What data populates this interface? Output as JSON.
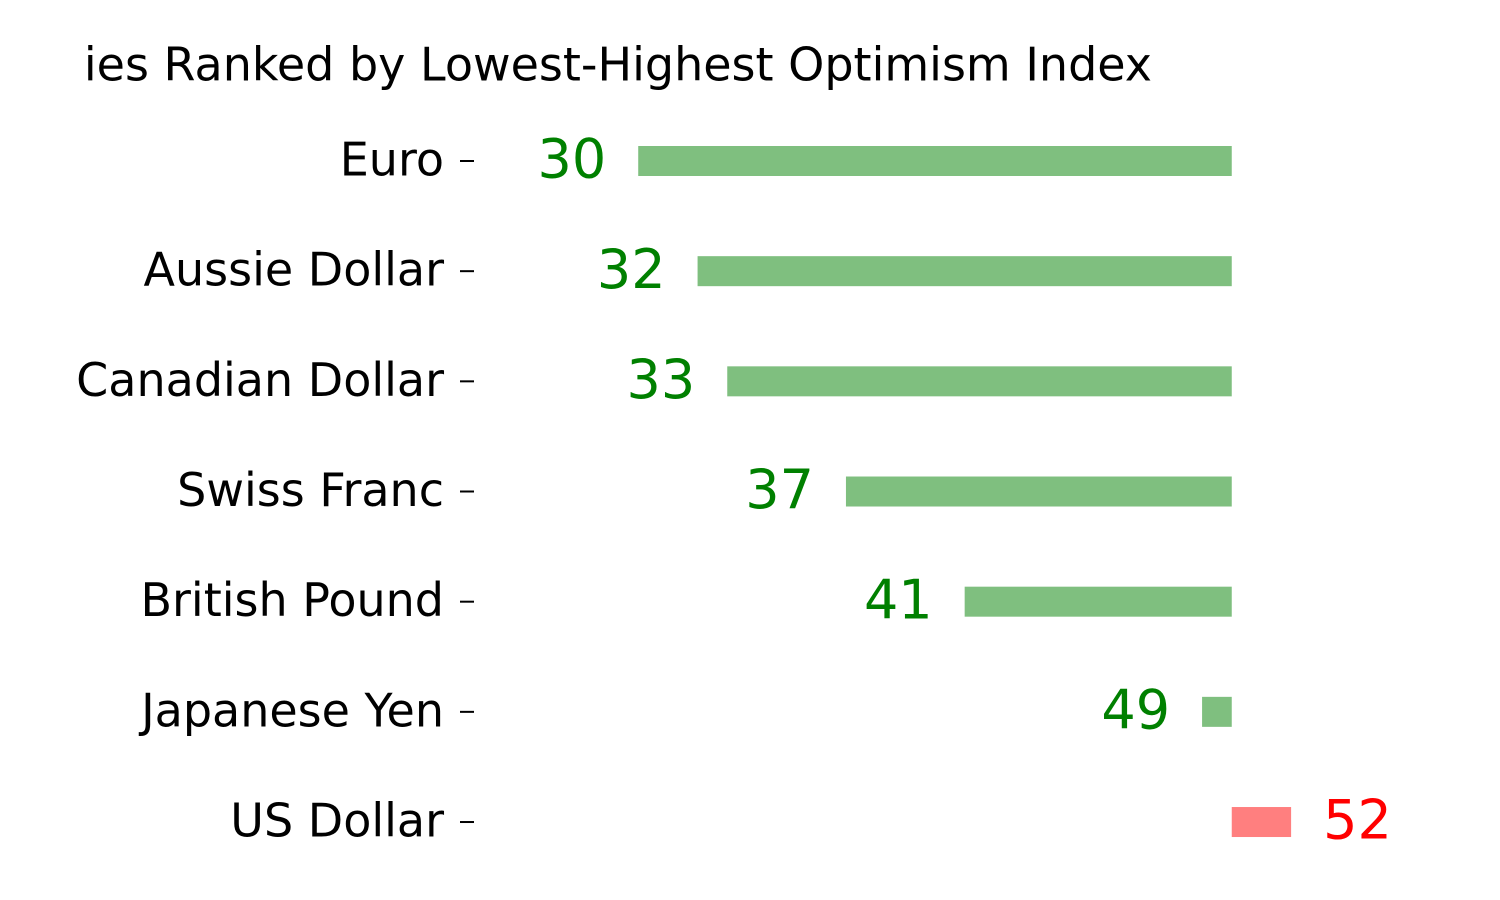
{
  "chart_data": {
    "type": "diverging-bar",
    "title": "ies Ranked by Lowest-Highest Optimism Index",
    "categories": [
      "Euro",
      "Aussie Dollar",
      "Canadian Dollar",
      "Swiss Franc",
      "British Pound",
      "Japanese Yen",
      "US Dollar"
    ],
    "values": [
      30,
      32,
      33,
      37,
      41,
      49,
      52
    ],
    "baseline": 50,
    "below_color": "#008000",
    "above_color": "#ff0000",
    "bar_opacity": 0.5,
    "xlim": [
      24.5,
      58.5
    ]
  }
}
